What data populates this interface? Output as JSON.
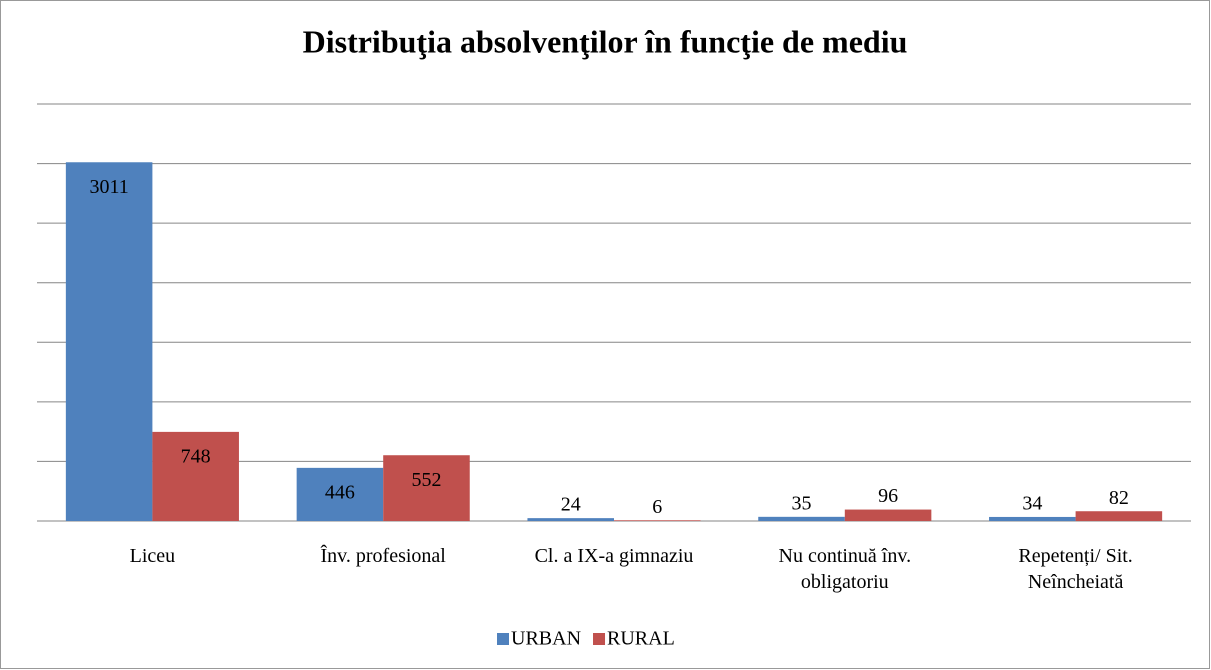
{
  "chart_data": {
    "type": "bar",
    "title": "Distribuţia absolvenţilor în funcţie de mediu",
    "categories": [
      "Liceu",
      "Înv. profesional",
      "Cl. a IX-a gimnaziu",
      "Nu continuă înv. obligatoriu",
      "Repetenți/ Sit. Neîncheiată"
    ],
    "series": [
      {
        "name": "URBAN",
        "color": "#4f81bd",
        "values": [
          3011,
          446,
          24,
          35,
          34
        ]
      },
      {
        "name": "RURAL",
        "color": "#c0504d",
        "values": [
          748,
          552,
          6,
          96,
          82
        ]
      }
    ],
    "ylim": [
      0,
      3500
    ],
    "yticks": [
      0,
      500,
      1000,
      1500,
      2000,
      2500,
      3000,
      3500
    ],
    "grid": true,
    "legend": "bottom"
  }
}
